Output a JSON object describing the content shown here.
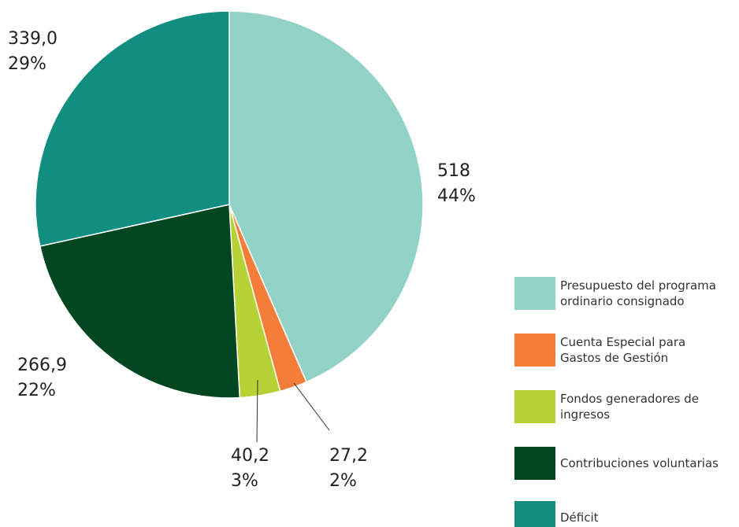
{
  "chart_data": {
    "type": "pie",
    "categories": [
      "Presupuesto del programa ordinario consignado",
      "Cuenta Especial para Gastos de Gestión",
      "Fondos generadores de ingresos",
      "Contribuciones voluntarias",
      "Déficit"
    ],
    "values": [
      518,
      27.2,
      40.2,
      266.9,
      339.0
    ],
    "value_labels": [
      "518",
      "27,2",
      "40,2",
      "266,9",
      "339,0"
    ],
    "percents": [
      44,
      2,
      3,
      22,
      29
    ],
    "percent_labels": [
      "44%",
      "2%",
      "3%",
      "22%",
      "29%"
    ],
    "colors": [
      "#93d3c6",
      "#f47d3a",
      "#b5d334",
      "#004620",
      "#108e80"
    ]
  }
}
